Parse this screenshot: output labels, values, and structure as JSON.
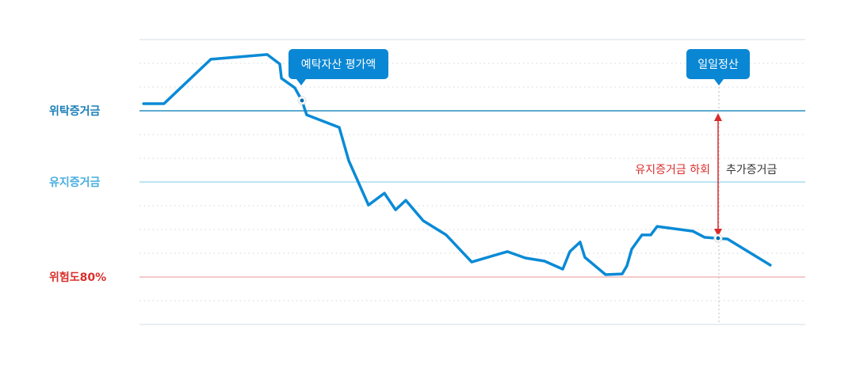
{
  "chart_data": {
    "type": "line",
    "x": [
      0.17,
      1.03,
      3,
      5.37,
      5.9,
      5.97,
      6.53,
      6.83,
      7.03,
      8.4,
      8.8,
      9.63,
      10.3,
      10.77,
      11.2,
      11.93,
      12.9,
      13.97,
      15.47,
      16.23,
      17.03,
      17.8,
      18.1,
      18.53,
      18.73,
      19.6,
      20.3,
      20.5,
      20.7,
      21.13,
      21.5,
      21.77,
      23.27,
      23.77,
      24.3,
      24.73,
      26.53
    ],
    "values": [
      9.3,
      9.3,
      11.17,
      11.37,
      10.97,
      10.37,
      9.97,
      9.43,
      8.83,
      8.3,
      6.9,
      5.03,
      5.53,
      4.83,
      5.23,
      4.37,
      3.77,
      2.63,
      3.07,
      2.8,
      2.67,
      2.33,
      3.07,
      3.47,
      2.83,
      2.1,
      2.13,
      2.47,
      3.17,
      3.77,
      3.77,
      4.13,
      3.93,
      3.67,
      3.63,
      3.6,
      2.5
    ],
    "color": "#0a8ad6",
    "xlim": [
      0,
      28
    ],
    "ylim": [
      0,
      12
    ],
    "yticks": [
      0,
      1,
      2,
      3,
      4,
      5,
      6,
      7,
      8,
      9,
      10,
      11,
      12
    ],
    "grid": true,
    "reference_lines": [
      {
        "label": "위탁증거금",
        "value": 9,
        "color": "#2a8fc0"
      },
      {
        "label": "유지증거금",
        "value": 6,
        "color": "#a8dcf0"
      },
      {
        "label": "위험도80%",
        "value": 2,
        "color": "#f0b8b8"
      }
    ],
    "label_colors": [
      "#1a7fb8",
      "#4aaee0",
      "#d9302c"
    ],
    "annotations": [
      "예탁자산 평가액",
      "일일정산",
      "유지증거금 하회",
      "추가증거금"
    ]
  }
}
